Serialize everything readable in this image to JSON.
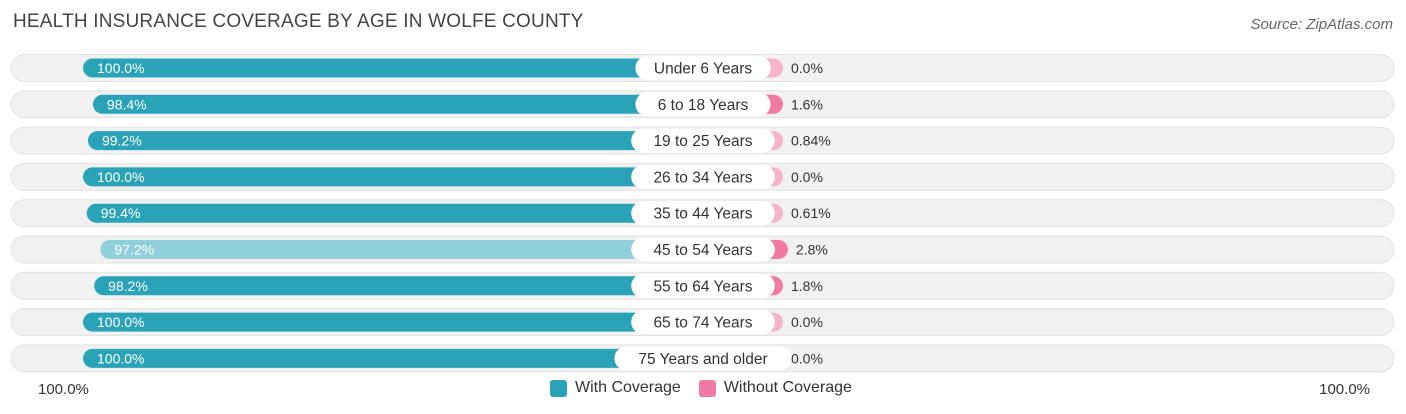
{
  "header": {
    "title": "HEALTH INSURANCE COVERAGE BY AGE IN WOLFE COUNTY",
    "source": "Source: ZipAtlas.com"
  },
  "colors": {
    "with_strong": "#2aa3b8",
    "with_light": "#8fd0da",
    "without_strong": "#f07aa2",
    "without_light": "#f6b4cb",
    "row_bg": "#f1f1f1"
  },
  "chart_data": {
    "type": "bar",
    "orientation": "horizontal-diverging",
    "title": "HEALTH INSURANCE COVERAGE BY AGE IN WOLFE COUNTY",
    "categories": [
      "Under 6 Years",
      "6 to 18 Years",
      "19 to 25 Years",
      "26 to 34 Years",
      "35 to 44 Years",
      "45 to 54 Years",
      "55 to 64 Years",
      "65 to 74 Years",
      "75 Years and older"
    ],
    "series": [
      {
        "name": "With Coverage",
        "values": [
          100.0,
          98.4,
          99.2,
          100.0,
          99.4,
          97.2,
          98.2,
          100.0,
          100.0
        ],
        "labels": [
          "100.0%",
          "98.4%",
          "99.2%",
          "100.0%",
          "99.4%",
          "97.2%",
          "98.2%",
          "100.0%",
          "100.0%"
        ]
      },
      {
        "name": "Without Coverage",
        "values": [
          0.0,
          1.6,
          0.84,
          0.0,
          0.61,
          2.8,
          1.8,
          0.0,
          0.0
        ],
        "labels": [
          "0.0%",
          "1.6%",
          "0.84%",
          "0.0%",
          "0.61%",
          "2.8%",
          "1.8%",
          "0.0%",
          "0.0%"
        ]
      }
    ],
    "axis": {
      "left_label": "100.0%",
      "right_label": "100.0%"
    },
    "legend": [
      "With Coverage",
      "Without Coverage"
    ]
  }
}
